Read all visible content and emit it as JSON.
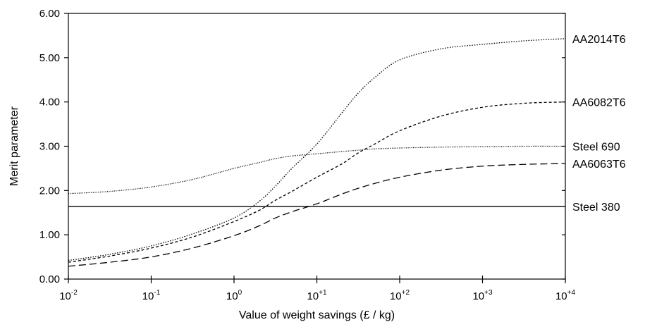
{
  "chart_data": {
    "type": "line",
    "title": "",
    "xlabel": "Value of weight savings (£ / kg)",
    "ylabel": "Merit  parameter",
    "x_scale": "log",
    "xlim": [
      0.01,
      10000
    ],
    "ylim": [
      0,
      6
    ],
    "grid": false,
    "legend": "labels at right end of each line",
    "x_ticks": [
      {
        "value": 0.01,
        "base": "10",
        "exp": "-2"
      },
      {
        "value": 0.1,
        "base": "10",
        "exp": "-1"
      },
      {
        "value": 1,
        "base": "10",
        "exp": "0"
      },
      {
        "value": 10,
        "base": "10",
        "exp": "+1"
      },
      {
        "value": 100,
        "base": "10",
        "exp": "+2"
      },
      {
        "value": 1000,
        "base": "10",
        "exp": "+3"
      },
      {
        "value": 10000,
        "base": "10",
        "exp": "+4"
      }
    ],
    "y_ticks": [
      "0.00",
      "1.00",
      "2.00",
      "3.00",
      "4.00",
      "5.00",
      "6.00"
    ],
    "x": [
      0.01,
      0.0316,
      0.1,
      0.316,
      1,
      2,
      3.16,
      5,
      10,
      20,
      31.6,
      50,
      100,
      316,
      1000,
      3162,
      10000
    ],
    "series": [
      {
        "name": "AA2014T6",
        "dash": "1.5,2",
        "values": [
          0.42,
          0.56,
          0.75,
          1.02,
          1.38,
          1.75,
          2.1,
          2.5,
          3.05,
          3.75,
          4.2,
          4.55,
          4.95,
          5.2,
          5.3,
          5.38,
          5.43
        ]
      },
      {
        "name": "AA6082T6",
        "dash": "4,3",
        "values": [
          0.38,
          0.52,
          0.7,
          0.95,
          1.3,
          1.55,
          1.78,
          1.98,
          2.3,
          2.6,
          2.85,
          3.05,
          3.35,
          3.68,
          3.88,
          3.97,
          4.0
        ]
      },
      {
        "name": "Steel 690",
        "dash": "1,1.5",
        "values": [
          1.93,
          1.98,
          2.08,
          2.25,
          2.5,
          2.63,
          2.72,
          2.78,
          2.83,
          2.88,
          2.91,
          2.94,
          2.96,
          2.98,
          2.99,
          3.0,
          3.0
        ]
      },
      {
        "name": "AA6063T6",
        "dash": "10,5",
        "values": [
          0.29,
          0.38,
          0.5,
          0.7,
          0.98,
          1.2,
          1.38,
          1.52,
          1.7,
          1.92,
          2.05,
          2.16,
          2.3,
          2.46,
          2.55,
          2.59,
          2.61
        ]
      },
      {
        "name": "Steel 380",
        "dash": "",
        "values": [
          1.64,
          1.64,
          1.64,
          1.64,
          1.64,
          1.64,
          1.64,
          1.64,
          1.64,
          1.64,
          1.64,
          1.64,
          1.64,
          1.64,
          1.64,
          1.64,
          1.64
        ]
      }
    ],
    "series_label_anchor": [
      {
        "name": "AA2014T6",
        "y": 5.43
      },
      {
        "name": "AA6082T6",
        "y": 4.0
      },
      {
        "name": "Steel 690",
        "y": 3.0
      },
      {
        "name": "AA6063T6",
        "y": 2.61
      },
      {
        "name": "Steel 380",
        "y": 1.64
      }
    ]
  }
}
